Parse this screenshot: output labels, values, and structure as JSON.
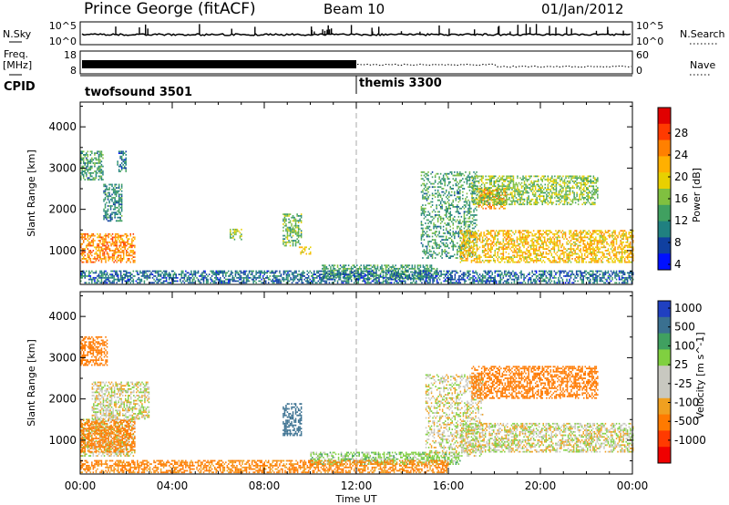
{
  "header": {
    "station": "Prince George (fitACF)",
    "beam": "Beam 10",
    "date": "01/Jan/2012"
  },
  "side_labels": {
    "nsky": "N.Sky",
    "freq": "Freq.",
    "freq_unit": "[MHz]",
    "cpid": "CPID",
    "nsearch": "N.Search",
    "nave": "Nave"
  },
  "strip_ticks": {
    "nsky_top": "10^5",
    "nsky_bottom": "10^0",
    "freq_top": "18",
    "freq_bottom": "8",
    "nave_top": "60",
    "nave_bottom": "0"
  },
  "cpid_segments": [
    {
      "label": "twofsound 3501",
      "start_hour": 0,
      "end_hour": 12
    },
    {
      "label": "themis 3300",
      "start_hour": 12,
      "end_hour": 24
    }
  ],
  "colorbars": {
    "power": {
      "label": "Power [dB]",
      "ticks": [
        "28",
        "24",
        "20",
        "16",
        "12",
        "8",
        "4"
      ],
      "colors": [
        "#e00000",
        "#ff3a00",
        "#ff8000",
        "#ffb000",
        "#e8d000",
        "#80c040",
        "#40a060",
        "#208080",
        "#1040a0",
        "#0010ff"
      ]
    },
    "velocity": {
      "label": "Velocity [m s^-1]",
      "ticks": [
        "1000",
        "500",
        "100",
        "25",
        "-25",
        "-100",
        "-500",
        "-1000"
      ],
      "colors": [
        "#2040c0",
        "#3a7090",
        "#40a060",
        "#80d040",
        "#c8c8c0",
        "#c8c8c0",
        "#f0a020",
        "#ff7a00",
        "#ff3a00",
        "#f00000"
      ]
    }
  },
  "chart_data": [
    {
      "type": "heatmap",
      "name": "power",
      "title": "",
      "ylabel": "Slant Range [km]",
      "xlabel": "Time UT",
      "x_ticks": [
        "00:00",
        "04:00",
        "08:00",
        "12:00",
        "16:00",
        "20:00",
        "00:00"
      ],
      "y_ticks": [
        "1000",
        "2000",
        "3000",
        "4000"
      ],
      "xlim": [
        0,
        24
      ],
      "ylim": [
        180,
        4600
      ],
      "scatter_regions": [
        {
          "t0": 0.0,
          "t1": 2.4,
          "r0": 700,
          "r1": 1400,
          "level": 24
        },
        {
          "t0": 0.0,
          "t1": 1.0,
          "r0": 2700,
          "r1": 3400,
          "level": 10
        },
        {
          "t0": 1.0,
          "t1": 1.8,
          "r0": 1700,
          "r1": 2600,
          "level": 8
        },
        {
          "t0": 1.6,
          "t1": 2.0,
          "r0": 2900,
          "r1": 3400,
          "level": 6
        },
        {
          "t0": 6.5,
          "t1": 7.0,
          "r0": 1250,
          "r1": 1500,
          "level": 14
        },
        {
          "t0": 8.8,
          "t1": 9.6,
          "r0": 1100,
          "r1": 1900,
          "level": 12
        },
        {
          "t0": 9.5,
          "t1": 10.0,
          "r0": 900,
          "r1": 1100,
          "level": 18
        },
        {
          "t0": 10.5,
          "t1": 15.5,
          "r0": 300,
          "r1": 650,
          "level": 10
        },
        {
          "t0": 14.8,
          "t1": 17.2,
          "r0": 800,
          "r1": 2900,
          "level": 10
        },
        {
          "t0": 16.5,
          "t1": 24.0,
          "r0": 700,
          "r1": 1500,
          "level": 20
        },
        {
          "t0": 17.3,
          "t1": 18.5,
          "r0": 2000,
          "r1": 2500,
          "level": 24
        },
        {
          "t0": 17.0,
          "t1": 22.5,
          "r0": 2100,
          "r1": 2800,
          "level": 14
        },
        {
          "t0": 0.0,
          "t1": 24.0,
          "r0": 200,
          "r1": 500,
          "level": 6
        }
      ]
    },
    {
      "type": "heatmap",
      "name": "velocity",
      "title": "",
      "ylabel": "Slant Range [km]",
      "xlabel": "Time UT",
      "x_ticks": [
        "00:00",
        "04:00",
        "08:00",
        "12:00",
        "16:00",
        "20:00",
        "00:00"
      ],
      "y_ticks": [
        "1000",
        "2000",
        "3000",
        "4000"
      ],
      "xlim": [
        0,
        24
      ],
      "ylim": [
        180,
        4600
      ],
      "scatter_regions": [
        {
          "t0": 0.0,
          "t1": 1.2,
          "r0": 2800,
          "r1": 3500,
          "level": -300
        },
        {
          "t0": 0.0,
          "t1": 2.4,
          "r0": 600,
          "r1": 1500,
          "level": 0
        },
        {
          "t0": 0.0,
          "t1": 2.4,
          "r0": 700,
          "r1": 1500,
          "level": -150
        },
        {
          "t0": 0.5,
          "t1": 3.0,
          "r0": 1500,
          "r1": 2400,
          "level": 0
        },
        {
          "t0": 8.8,
          "t1": 9.6,
          "r0": 1100,
          "r1": 1900,
          "level": 600
        },
        {
          "t0": 10.0,
          "t1": 16.5,
          "r0": 400,
          "r1": 700,
          "level": 60
        },
        {
          "t0": 15.0,
          "t1": 17.5,
          "r0": 600,
          "r1": 2600,
          "level": 0
        },
        {
          "t0": 16.5,
          "t1": 24.0,
          "r0": 700,
          "r1": 1400,
          "level": 0
        },
        {
          "t0": 17.0,
          "t1": 22.5,
          "r0": 2000,
          "r1": 2800,
          "level": -250
        },
        {
          "t0": 0.0,
          "t1": 16.0,
          "r0": 200,
          "r1": 500,
          "level": -120
        }
      ]
    }
  ]
}
